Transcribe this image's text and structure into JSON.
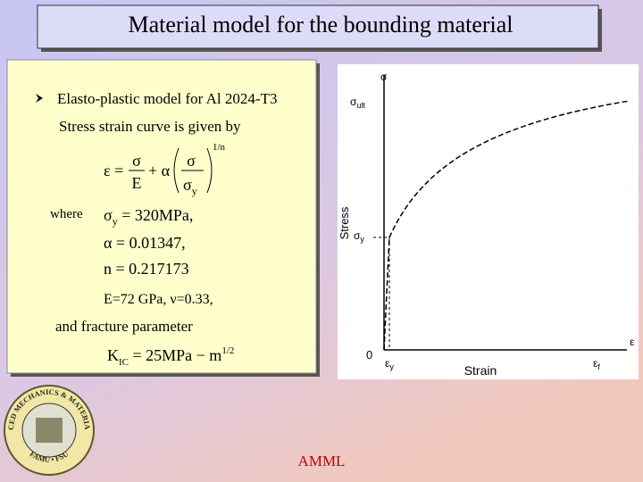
{
  "title": "Material model for the bounding material",
  "content": {
    "bullet": "Elasto-plastic model for Al 2024-T3",
    "intro": "Stress strain curve is given by",
    "equation": {
      "lhs": "ε =",
      "frac1_num": "σ",
      "frac1_den": "E",
      "plus": "+ α",
      "frac2_num": "σ",
      "frac2_den": "σ",
      "frac2_den_sub": "y",
      "exponent": "1/n"
    },
    "where": "where",
    "sigma_y": {
      "symbol": "σ",
      "sub": "y",
      "rest": " = 320MPa,"
    },
    "alpha": "α = 0.01347,",
    "n": "n = 0.217173",
    "moduli": "E=72 GPa, ν=0.33,",
    "fracture": "and fracture parameter",
    "kic": {
      "symbol": "K",
      "sub": "IC",
      "rest": " = 25MPa − m",
      "sup": "1/2"
    }
  },
  "figure": {
    "y_axis_symbol": "σ",
    "ult": {
      "symbol": "σ",
      "sub": "ult"
    },
    "yield": {
      "symbol": "σ",
      "sub": "y"
    },
    "y_label": "Stress",
    "x_label": "Strain",
    "origin": "0",
    "x_axis_symbol": "ε",
    "eps_y": {
      "symbol": "ε",
      "sub": "y"
    },
    "eps_f": {
      "symbol": "ε",
      "sub": "f"
    }
  },
  "logo": {
    "ring_top": "ADVANCED MECHANICS & MATERIALS LAB",
    "ring_bottom": "FAMU • FSU"
  },
  "footer": "AMML"
}
